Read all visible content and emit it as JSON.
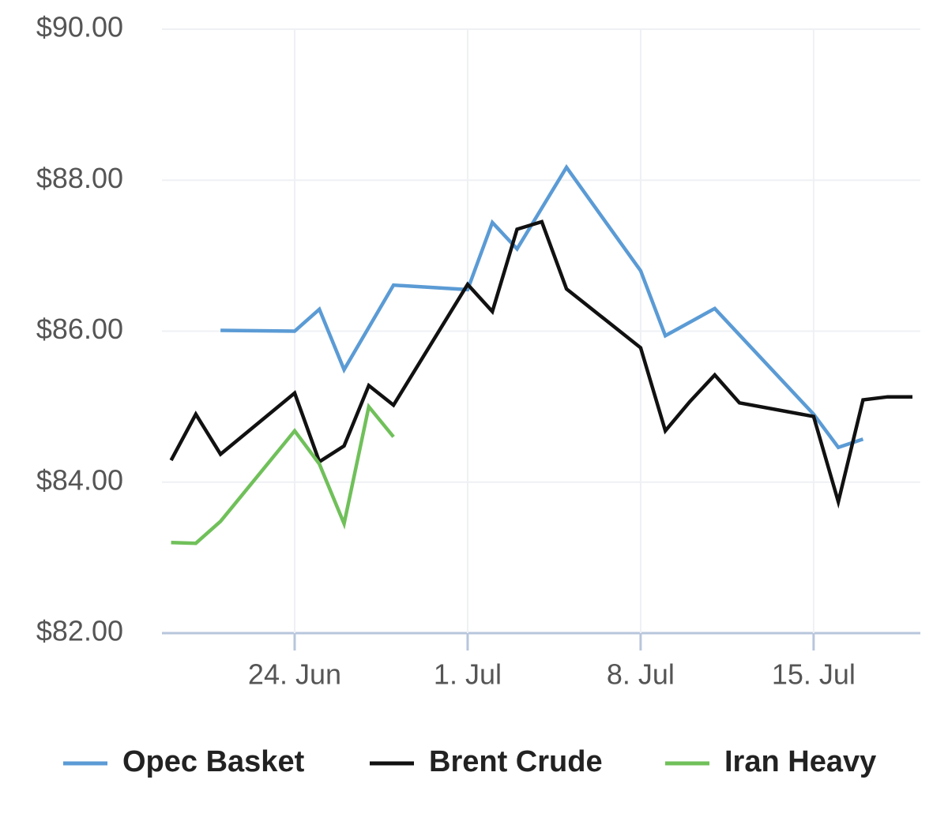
{
  "chart_data": {
    "type": "line",
    "xlim": [
      "18. Jun",
      "19. Jul"
    ],
    "xticks": [
      "24. Jun",
      "1. Jul",
      "8. Jul",
      "15. Jul"
    ],
    "ylim": [
      82,
      90
    ],
    "yticks": [
      {
        "value": 82,
        "label": "$82.00"
      },
      {
        "value": 84,
        "label": "$84.00"
      },
      {
        "value": 86,
        "label": "$86.00"
      },
      {
        "value": 88,
        "label": "$88.00"
      },
      {
        "value": 90,
        "label": "$90.00"
      }
    ],
    "grid": true,
    "legend": "bottom",
    "series": [
      {
        "name": "Opec Basket",
        "color": "#5b9bd5",
        "x": [
          "21. Jun",
          "24. Jun",
          "25. Jun",
          "26. Jun",
          "28. Jun",
          "1. Jul",
          "2. Jul",
          "3. Jul",
          "5. Jul",
          "8. Jul",
          "9. Jul",
          "11. Jul",
          "15. Jul",
          "16. Jul",
          "17. Jul"
        ],
        "values": [
          86.01,
          86.0,
          86.29,
          85.49,
          86.61,
          86.55,
          87.44,
          87.09,
          88.17,
          86.8,
          85.94,
          86.3,
          84.9,
          84.46,
          84.57
        ]
      },
      {
        "name": "Brent Crude",
        "color": "#111111",
        "x": [
          "19. Jun",
          "20. Jun",
          "21. Jun",
          "24. Jun",
          "25. Jun",
          "26. Jun",
          "27. Jun",
          "28. Jun",
          "1. Jul",
          "2. Jul",
          "3. Jul",
          "4. Jul",
          "5. Jul",
          "8. Jul",
          "9. Jul",
          "10. Jul",
          "11. Jul",
          "12. Jul",
          "15. Jul",
          "16. Jul",
          "17. Jul",
          "18. Jul",
          "19. Jul"
        ],
        "values": [
          84.29,
          84.9,
          84.37,
          85.18,
          84.27,
          84.48,
          85.28,
          85.02,
          86.62,
          86.26,
          87.35,
          87.45,
          86.56,
          85.78,
          84.68,
          85.07,
          85.42,
          85.05,
          84.87,
          83.74,
          85.09,
          85.13,
          85.13
        ]
      },
      {
        "name": "Iran Heavy",
        "color": "#70c05a",
        "x": [
          "19. Jun",
          "20. Jun",
          "21. Jun",
          "24. Jun",
          "25. Jun",
          "26. Jun",
          "27. Jun",
          "28. Jun"
        ],
        "values": [
          83.2,
          83.19,
          83.48,
          84.68,
          84.24,
          83.45,
          85.0,
          84.6
        ]
      }
    ]
  }
}
